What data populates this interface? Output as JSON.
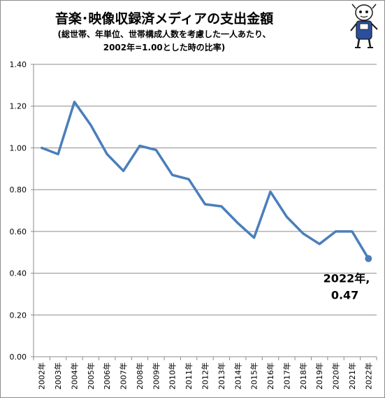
{
  "title": {
    "main": "音楽･映像収録済メディアの支出金額",
    "sub1": "(総世帯、年単位、世帯構成人数を考慮した一人あたり、",
    "sub2": "2002年=1.00とした時の比率)"
  },
  "colors": {
    "line": "#4a7ebb",
    "grid": "#8c8c8c",
    "background": "#ffffff"
  },
  "mascot": {
    "icon": "mascot-character-icon"
  },
  "chart_data": {
    "type": "line",
    "categories": [
      "2002年",
      "2003年",
      "2004年",
      "2005年",
      "2006年",
      "2007年",
      "2008年",
      "2009年",
      "2010年",
      "2011年",
      "2012年",
      "2013年",
      "2014年",
      "2015年",
      "2016年",
      "2017年",
      "2018年",
      "2019年",
      "2020年",
      "2021年",
      "2022年"
    ],
    "series": [
      {
        "values": [
          1.0,
          0.97,
          1.22,
          1.11,
          0.97,
          0.89,
          1.01,
          0.99,
          0.87,
          0.85,
          0.73,
          0.72,
          0.64,
          0.57,
          0.79,
          0.67,
          0.59,
          0.54,
          0.6,
          0.6,
          0.47
        ]
      }
    ],
    "yticks": [
      "0.00",
      "0.20",
      "0.40",
      "0.60",
      "0.80",
      "1.00",
      "1.20",
      "1.40"
    ],
    "ylim": [
      0,
      1.4
    ],
    "grid": true,
    "annotation": {
      "line1": "2022年,",
      "line2": "0.47",
      "category_index": 20
    }
  }
}
